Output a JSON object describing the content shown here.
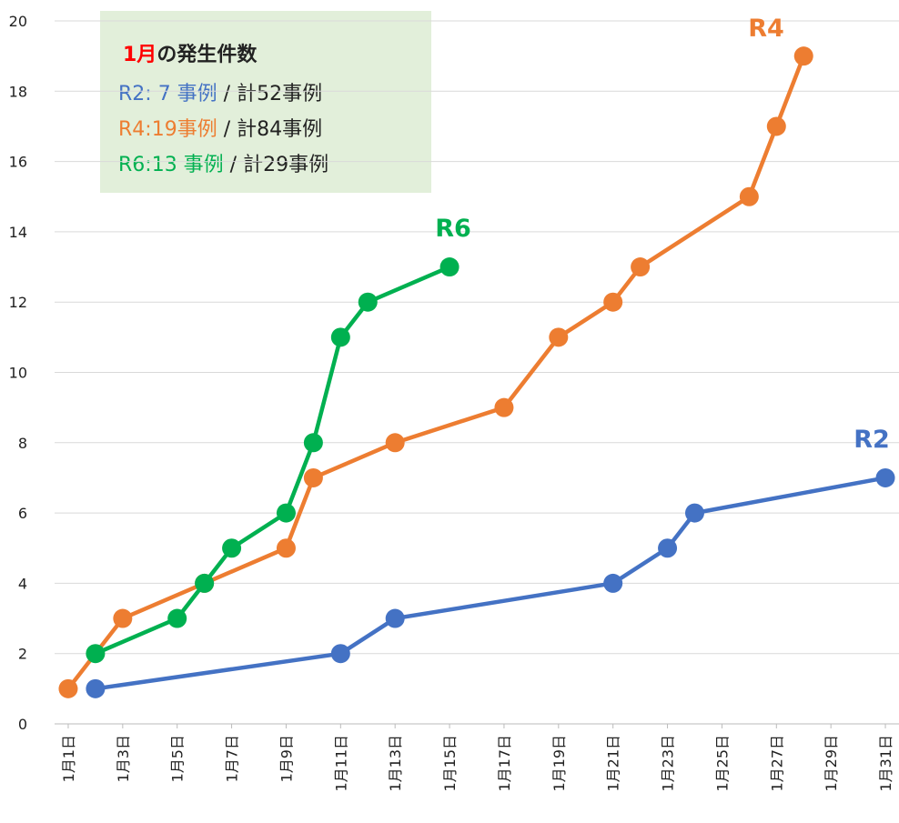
{
  "chart_data": {
    "type": "line",
    "xlim": [
      0.5,
      31.5
    ],
    "xticks": [
      {
        "value": 1,
        "label": "1月1日"
      },
      {
        "value": 3,
        "label": "1月3日"
      },
      {
        "value": 5,
        "label": "1月5日"
      },
      {
        "value": 7,
        "label": "1月7日"
      },
      {
        "value": 9,
        "label": "1月9日"
      },
      {
        "value": 11,
        "label": "1月11日"
      },
      {
        "value": 13,
        "label": "1月13日"
      },
      {
        "value": 15,
        "label": "1月15日"
      },
      {
        "value": 17,
        "label": "1月17日"
      },
      {
        "value": 19,
        "label": "1月19日"
      },
      {
        "value": 21,
        "label": "1月21日"
      },
      {
        "value": 23,
        "label": "1月23日"
      },
      {
        "value": 25,
        "label": "1月25日"
      },
      {
        "value": 27,
        "label": "1月27日"
      },
      {
        "value": 29,
        "label": "1月29日"
      },
      {
        "value": 31,
        "label": "1月31日"
      }
    ],
    "ylim": [
      0,
      20
    ],
    "yticks": [
      0,
      2,
      4,
      6,
      8,
      10,
      12,
      14,
      16,
      18,
      20
    ],
    "grid": true,
    "series": [
      {
        "name": "R2",
        "color": "#4472c4",
        "x": [
          2,
          11,
          13,
          21,
          23,
          24,
          31
        ],
        "values": [
          1,
          2,
          3,
          4,
          5,
          6,
          7
        ]
      },
      {
        "name": "R4",
        "color": "#ed7d31",
        "x": [
          1,
          3,
          6,
          9,
          10,
          13,
          17,
          19,
          21,
          22,
          26,
          27,
          28
        ],
        "values": [
          1,
          3,
          4,
          5,
          7,
          8,
          9,
          11,
          12,
          13,
          15,
          17,
          19
        ]
      },
      {
        "name": "R6",
        "color": "#00b050",
        "x": [
          2,
          5,
          6,
          7,
          9,
          10,
          11,
          12,
          15
        ],
        "values": [
          2,
          3,
          4,
          5,
          6,
          8,
          11,
          12,
          13
        ]
      }
    ],
    "annotation": {
      "title_highlight": "1月",
      "title_rest": "の発生件数",
      "lines": [
        {
          "colored": "R2: 7  事例",
          "rest": " / 計52事例"
        },
        {
          "colored": "R4:19事例",
          "rest": " / 計84事例"
        },
        {
          "colored": "R6:13 事例",
          "rest": " / 計29事例"
        }
      ]
    }
  }
}
